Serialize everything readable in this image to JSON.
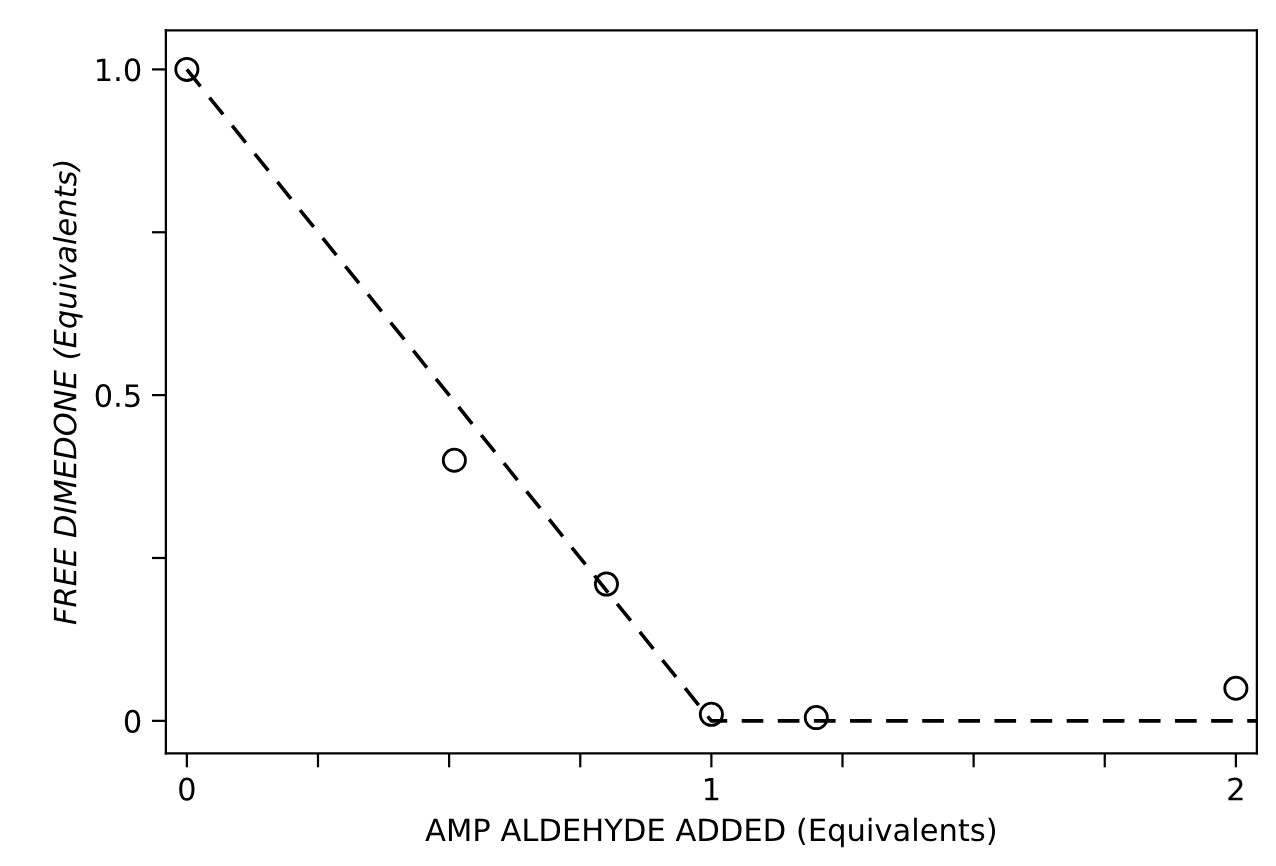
{
  "chart_data": {
    "type": "scatter",
    "xlabel": "AMP ALDEHYDE ADDED (Equivalents)",
    "ylabel": "FREE DIMEDONE (Equivalents)",
    "series": [
      {
        "color": "#000000",
        "marker": "circle",
        "x": [
          0,
          0.51,
          0.8,
          1.0,
          1.2,
          2.0
        ],
        "values": [
          1.0,
          0.4,
          0.21,
          0.01,
          0.005,
          0.05
        ]
      },
      {
        "type": "line",
        "color": "#000000",
        "marker": "none",
        "line_style": "dashed",
        "x": [
          0,
          1,
          2.04
        ],
        "values": [
          1.0,
          0,
          0
        ]
      }
    ],
    "xlim": [
      -0.04,
      2.04
    ],
    "ylim": [
      -0.05,
      1.06
    ],
    "xticks": [
      0,
      {
        "value": 0.25,
        "label": null
      },
      {
        "value": 0.5,
        "label": null
      },
      {
        "value": 0.75,
        "label": null
      },
      1,
      {
        "value": 1.25,
        "label": null
      },
      {
        "value": 1.5,
        "label": null
      },
      {
        "value": 1.75,
        "label": null
      },
      2
    ],
    "yticks": [
      0,
      {
        "value": 0.25,
        "label": null
      },
      {
        "value": 0.5,
        "label": "0.5"
      },
      {
        "value": 0.75,
        "label": null
      },
      {
        "value": 1.0,
        "label": "1.0"
      }
    ],
    "grid": false,
    "legend": false
  }
}
